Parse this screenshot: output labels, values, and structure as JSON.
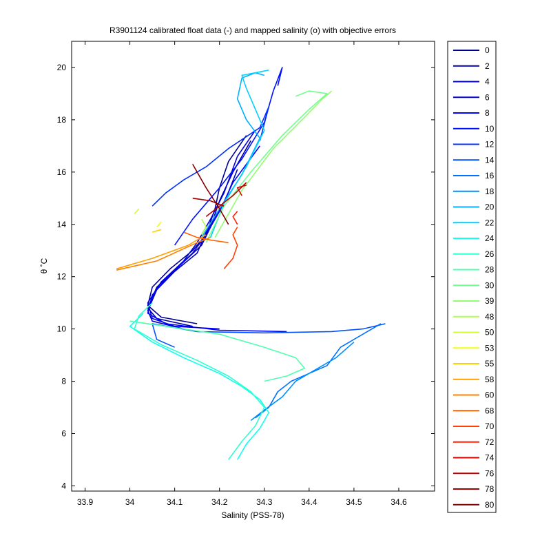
{
  "chart_data": {
    "type": "line",
    "title": "R3901124 calibrated float data (-) and mapped salinity (o) with objective errors",
    "xlabel": "Salinity (PSS-78)",
    "ylabel": "θ ˚C",
    "xlim": [
      33.87,
      34.68
    ],
    "ylim": [
      3.8,
      21
    ],
    "xticks": [
      "33.9",
      "34",
      "34.1",
      "34.2",
      "34.3",
      "34.4",
      "34.5",
      "34.6"
    ],
    "yticks": [
      "4",
      "6",
      "8",
      "10",
      "12",
      "14",
      "16",
      "18",
      "20"
    ],
    "grid": false,
    "legend_position": "outside-right",
    "series": [
      {
        "name": "0",
        "color": "#00008f",
        "points": [
          [
            34.15,
            10.2
          ],
          [
            34.07,
            10.45
          ],
          [
            34.04,
            10.9
          ],
          [
            34.05,
            11.6
          ],
          [
            34.09,
            12.3
          ],
          [
            34.14,
            13.0
          ],
          [
            34.17,
            13.6
          ],
          [
            34.19,
            14.6
          ],
          [
            34.2,
            15.4
          ],
          [
            34.22,
            16.4
          ],
          [
            34.26,
            17.4
          ]
        ]
      },
      {
        "name": "2",
        "color": "#0000aa",
        "points": [
          [
            34.14,
            10.1
          ],
          [
            34.06,
            10.4
          ],
          [
            34.04,
            10.8
          ],
          [
            34.06,
            11.6
          ],
          [
            34.11,
            12.4
          ],
          [
            34.16,
            13.2
          ],
          [
            34.18,
            13.9
          ],
          [
            34.2,
            14.9
          ],
          [
            34.23,
            16.0
          ],
          [
            34.27,
            17.2
          ]
        ]
      },
      {
        "name": "4",
        "color": "#0000c4",
        "points": [
          [
            34.12,
            10.0
          ],
          [
            34.05,
            10.3
          ],
          [
            34.04,
            10.7
          ],
          [
            34.06,
            11.5
          ],
          [
            34.1,
            12.2
          ],
          [
            34.15,
            12.9
          ],
          [
            34.17,
            13.7
          ],
          [
            34.21,
            14.8
          ],
          [
            34.24,
            16.1
          ]
        ]
      },
      {
        "name": "6",
        "color": "#0000df",
        "points": [
          [
            34.2,
            10.0
          ],
          [
            34.1,
            10.1
          ],
          [
            34.05,
            10.4
          ],
          [
            34.04,
            11.0
          ],
          [
            34.07,
            11.8
          ],
          [
            34.12,
            12.6
          ],
          [
            34.15,
            13.3
          ],
          [
            34.18,
            14.2
          ],
          [
            34.21,
            15.2
          ],
          [
            34.24,
            16.6
          ],
          [
            34.28,
            17.6
          ]
        ]
      },
      {
        "name": "8",
        "color": "#0000ff",
        "points": [
          [
            34.35,
            9.9
          ],
          [
            34.2,
            9.95
          ],
          [
            34.08,
            10.2
          ],
          [
            34.04,
            10.6
          ],
          [
            34.05,
            11.3
          ],
          [
            34.09,
            12.1
          ],
          [
            34.14,
            12.9
          ],
          [
            34.17,
            13.6
          ],
          [
            34.2,
            14.5
          ],
          [
            34.23,
            15.6
          ],
          [
            34.29,
            17.0
          ]
        ]
      },
      {
        "name": "10",
        "color": "#0010ff",
        "points": [
          [
            34.1,
            13.2
          ],
          [
            34.14,
            14.2
          ],
          [
            34.2,
            15.4
          ],
          [
            34.25,
            16.5
          ],
          [
            34.3,
            17.9
          ],
          [
            34.32,
            19.1
          ],
          [
            34.34,
            20.0
          ],
          [
            34.33,
            19.3
          ]
        ]
      },
      {
        "name": "12",
        "color": "#0030ff",
        "points": [
          [
            34.05,
            14.7
          ],
          [
            34.08,
            15.2
          ],
          [
            34.12,
            15.7
          ],
          [
            34.17,
            16.2
          ],
          [
            34.22,
            16.9
          ],
          [
            34.29,
            17.7
          ],
          [
            34.31,
            18.5
          ],
          [
            34.29,
            17.2
          ]
        ]
      },
      {
        "name": "14",
        "color": "#0050ff",
        "points": [
          [
            34.57,
            10.2
          ],
          [
            34.52,
            10.0
          ],
          [
            34.45,
            9.9
          ],
          [
            34.3,
            9.85
          ],
          [
            34.15,
            9.9
          ],
          [
            34.05,
            10.2
          ],
          [
            34.06,
            9.6
          ],
          [
            34.1,
            9.3
          ]
        ]
      },
      {
        "name": "16",
        "color": "#0070ff",
        "points": [
          [
            34.56,
            10.2
          ],
          [
            34.52,
            9.8
          ],
          [
            34.47,
            9.3
          ],
          [
            34.44,
            8.6
          ],
          [
            34.4,
            8.3
          ],
          [
            34.36,
            8.0
          ],
          [
            34.33,
            7.6
          ],
          [
            34.31,
            7.0
          ],
          [
            34.28,
            6.6
          ]
        ]
      },
      {
        "name": "18",
        "color": "#0090ff",
        "points": [
          [
            34.5,
            9.5
          ],
          [
            34.46,
            8.9
          ],
          [
            34.42,
            8.5
          ],
          [
            34.37,
            8.0
          ],
          [
            34.34,
            7.4
          ],
          [
            34.3,
            6.9
          ],
          [
            34.27,
            6.5
          ]
        ]
      },
      {
        "name": "20",
        "color": "#00b0ff",
        "points": [
          [
            34.16,
            13.5
          ],
          [
            34.2,
            14.6
          ],
          [
            34.25,
            15.9
          ],
          [
            34.29,
            17.3
          ],
          [
            34.26,
            18.0
          ],
          [
            34.24,
            18.8
          ],
          [
            34.25,
            19.6
          ],
          [
            34.28,
            19.8
          ],
          [
            34.3,
            19.7
          ]
        ]
      },
      {
        "name": "22",
        "color": "#00d0ff",
        "points": [
          [
            34.18,
            13.5
          ],
          [
            34.21,
            14.8
          ],
          [
            34.26,
            16.2
          ],
          [
            34.3,
            17.6
          ],
          [
            34.28,
            18.4
          ],
          [
            34.26,
            19.2
          ],
          [
            34.25,
            19.7
          ],
          [
            34.31,
            19.9
          ]
        ]
      },
      {
        "name": "24",
        "color": "#10ffef",
        "points": [
          [
            34.24,
            5.0
          ],
          [
            34.26,
            5.6
          ],
          [
            34.29,
            6.2
          ],
          [
            34.31,
            6.8
          ],
          [
            34.29,
            7.3
          ],
          [
            34.25,
            7.8
          ],
          [
            34.2,
            8.3
          ],
          [
            34.12,
            8.9
          ],
          [
            34.05,
            9.5
          ],
          [
            34.0,
            10.1
          ],
          [
            34.03,
            10.6
          ]
        ]
      },
      {
        "name": "26",
        "color": "#30ffcf",
        "points": [
          [
            34.22,
            5.0
          ],
          [
            34.25,
            5.7
          ],
          [
            34.28,
            6.3
          ],
          [
            34.3,
            7.0
          ],
          [
            34.27,
            7.6
          ],
          [
            34.22,
            8.2
          ],
          [
            34.15,
            8.8
          ],
          [
            34.07,
            9.4
          ],
          [
            34.01,
            10.0
          ],
          [
            34.02,
            10.5
          ],
          [
            34.05,
            11.0
          ]
        ]
      },
      {
        "name": "28",
        "color": "#50ffaf",
        "points": [
          [
            34.0,
            10.3
          ],
          [
            34.08,
            10.1
          ],
          [
            34.2,
            9.8
          ],
          [
            34.3,
            9.3
          ],
          [
            34.37,
            8.9
          ],
          [
            34.39,
            8.5
          ],
          [
            34.35,
            8.2
          ],
          [
            34.3,
            8.0
          ]
        ]
      },
      {
        "name": "30",
        "color": "#70ff8f",
        "points": [
          [
            34.17,
            13.3
          ],
          [
            34.21,
            14.7
          ],
          [
            34.27,
            16.0
          ],
          [
            34.34,
            17.4
          ],
          [
            34.4,
            18.4
          ],
          [
            34.44,
            19.0
          ],
          [
            34.4,
            19.1
          ],
          [
            34.37,
            18.9
          ]
        ]
      },
      {
        "name": "39",
        "color": "#90ff6f",
        "points": [
          [
            34.19,
            13.5
          ],
          [
            34.25,
            15.3
          ],
          [
            34.32,
            16.9
          ],
          [
            34.39,
            18.1
          ],
          [
            34.43,
            18.8
          ],
          [
            34.45,
            19.1
          ]
        ]
      },
      {
        "name": "48",
        "color": "#b0ff4f",
        "points": [
          [
            34.16,
            13.6
          ],
          [
            34.17,
            13.9
          ],
          [
            34.16,
            14.2
          ]
        ]
      },
      {
        "name": "50",
        "color": "#d0ff2f",
        "points": [
          [
            34.01,
            14.4
          ],
          [
            34.02,
            14.6
          ]
        ]
      },
      {
        "name": "53",
        "color": "#f0ff0f",
        "points": [
          [
            34.06,
            13.9
          ],
          [
            34.07,
            14.1
          ]
        ]
      },
      {
        "name": "55",
        "color": "#ffd000",
        "points": [
          [
            34.05,
            13.7
          ],
          [
            34.07,
            13.8
          ]
        ]
      },
      {
        "name": "58",
        "color": "#ffa000",
        "points": [
          [
            33.97,
            12.3
          ],
          [
            34.05,
            12.7
          ],
          [
            34.13,
            13.2
          ],
          [
            34.17,
            13.6
          ]
        ]
      },
      {
        "name": "60",
        "color": "#ff8000",
        "points": [
          [
            33.97,
            12.25
          ],
          [
            34.06,
            12.6
          ],
          [
            34.15,
            13.3
          ],
          [
            34.18,
            13.5
          ]
        ]
      },
      {
        "name": "68",
        "color": "#ff6000",
        "points": [
          [
            34.12,
            13.7
          ],
          [
            34.15,
            13.5
          ],
          [
            34.18,
            13.4
          ],
          [
            34.22,
            13.3
          ]
        ]
      },
      {
        "name": "70",
        "color": "#ff4000",
        "points": [
          [
            34.21,
            12.3
          ],
          [
            34.23,
            12.7
          ],
          [
            34.24,
            13.2
          ],
          [
            34.23,
            13.6
          ],
          [
            34.24,
            13.9
          ]
        ]
      },
      {
        "name": "72",
        "color": "#ff2000",
        "points": [
          [
            34.24,
            14.0
          ],
          [
            34.23,
            14.3
          ],
          [
            34.24,
            14.5
          ]
        ]
      },
      {
        "name": "74",
        "color": "#e00000",
        "points": [
          [
            34.25,
            15.1
          ],
          [
            34.24,
            15.4
          ],
          [
            34.26,
            15.5
          ]
        ]
      },
      {
        "name": "76",
        "color": "#c00000",
        "points": [
          [
            34.17,
            14.3
          ],
          [
            34.2,
            14.7
          ],
          [
            34.23,
            15.1
          ],
          [
            34.26,
            15.6
          ]
        ]
      },
      {
        "name": "78",
        "color": "#a00000",
        "points": [
          [
            34.14,
            15.0
          ],
          [
            34.18,
            14.9
          ],
          [
            34.21,
            14.7
          ]
        ]
      },
      {
        "name": "80",
        "color": "#800000",
        "points": [
          [
            34.14,
            16.3
          ],
          [
            34.17,
            15.4
          ],
          [
            34.2,
            14.6
          ],
          [
            34.22,
            14.0
          ]
        ]
      }
    ]
  }
}
